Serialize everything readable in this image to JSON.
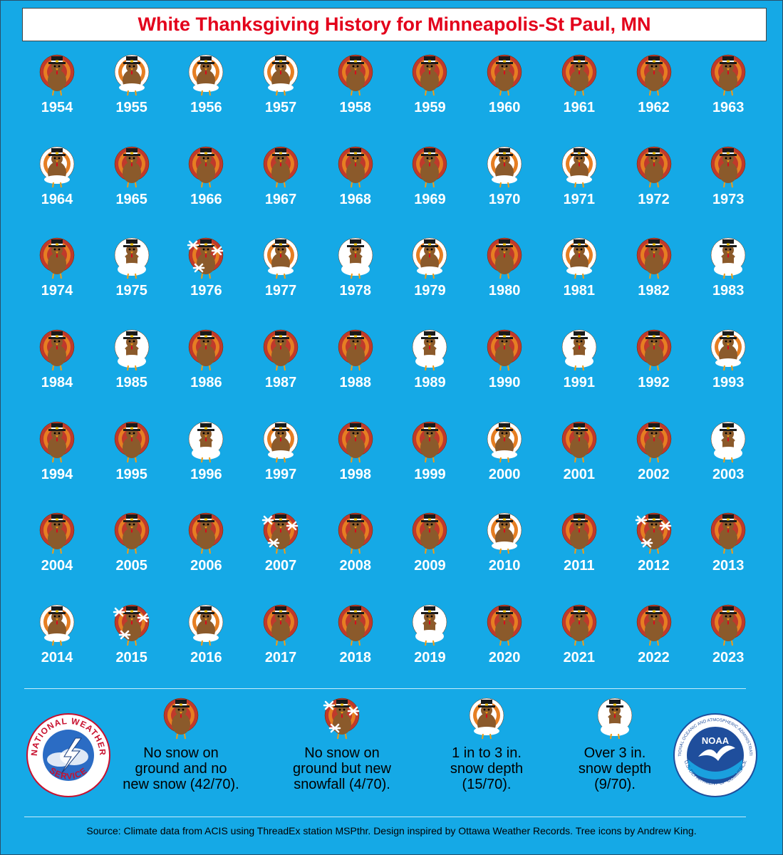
{
  "title": "White Thanksgiving History for Minneapolis-St Paul, MN",
  "categories": {
    "none": {
      "label": "No snow on\nground and no\nnew snow (42/70)."
    },
    "snowfall": {
      "label": "No snow on\nground but new\nsnowfall (4/70)."
    },
    "light": {
      "label": "1 in to 3 in.\nsnow depth\n(15/70)."
    },
    "heavy": {
      "label": "Over 3 in.\nsnow depth\n(9/70)."
    }
  },
  "colors": {
    "background": "#15a9e6",
    "title": "#e3001b",
    "turkey_body": "#8b5a2b",
    "feather_1": "#c0392b",
    "feather_2": "#e67e22",
    "snow": "#ffffff"
  },
  "years": [
    {
      "year": "1954",
      "category": "none"
    },
    {
      "year": "1955",
      "category": "light"
    },
    {
      "year": "1956",
      "category": "light"
    },
    {
      "year": "1957",
      "category": "light"
    },
    {
      "year": "1958",
      "category": "none"
    },
    {
      "year": "1959",
      "category": "none"
    },
    {
      "year": "1960",
      "category": "none"
    },
    {
      "year": "1961",
      "category": "none"
    },
    {
      "year": "1962",
      "category": "none"
    },
    {
      "year": "1963",
      "category": "none"
    },
    {
      "year": "1964",
      "category": "light"
    },
    {
      "year": "1965",
      "category": "none"
    },
    {
      "year": "1966",
      "category": "none"
    },
    {
      "year": "1967",
      "category": "none"
    },
    {
      "year": "1968",
      "category": "none"
    },
    {
      "year": "1969",
      "category": "none"
    },
    {
      "year": "1970",
      "category": "light"
    },
    {
      "year": "1971",
      "category": "light"
    },
    {
      "year": "1972",
      "category": "none"
    },
    {
      "year": "1973",
      "category": "none"
    },
    {
      "year": "1974",
      "category": "none"
    },
    {
      "year": "1975",
      "category": "heavy"
    },
    {
      "year": "1976",
      "category": "snowfall"
    },
    {
      "year": "1977",
      "category": "light"
    },
    {
      "year": "1978",
      "category": "heavy"
    },
    {
      "year": "1979",
      "category": "light"
    },
    {
      "year": "1980",
      "category": "none"
    },
    {
      "year": "1981",
      "category": "light"
    },
    {
      "year": "1982",
      "category": "none"
    },
    {
      "year": "1983",
      "category": "heavy"
    },
    {
      "year": "1984",
      "category": "none"
    },
    {
      "year": "1985",
      "category": "heavy"
    },
    {
      "year": "1986",
      "category": "none"
    },
    {
      "year": "1987",
      "category": "none"
    },
    {
      "year": "1988",
      "category": "none"
    },
    {
      "year": "1989",
      "category": "heavy"
    },
    {
      "year": "1990",
      "category": "none"
    },
    {
      "year": "1991",
      "category": "heavy"
    },
    {
      "year": "1992",
      "category": "none"
    },
    {
      "year": "1993",
      "category": "light"
    },
    {
      "year": "1994",
      "category": "none"
    },
    {
      "year": "1995",
      "category": "none"
    },
    {
      "year": "1996",
      "category": "heavy"
    },
    {
      "year": "1997",
      "category": "light"
    },
    {
      "year": "1998",
      "category": "none"
    },
    {
      "year": "1999",
      "category": "none"
    },
    {
      "year": "2000",
      "category": "light"
    },
    {
      "year": "2001",
      "category": "none"
    },
    {
      "year": "2002",
      "category": "none"
    },
    {
      "year": "2003",
      "category": "heavy"
    },
    {
      "year": "2004",
      "category": "none"
    },
    {
      "year": "2005",
      "category": "none"
    },
    {
      "year": "2006",
      "category": "none"
    },
    {
      "year": "2007",
      "category": "snowfall"
    },
    {
      "year": "2008",
      "category": "none"
    },
    {
      "year": "2009",
      "category": "none"
    },
    {
      "year": "2010",
      "category": "light"
    },
    {
      "year": "2011",
      "category": "none"
    },
    {
      "year": "2012",
      "category": "snowfall"
    },
    {
      "year": "2013",
      "category": "none"
    },
    {
      "year": "2014",
      "category": "light"
    },
    {
      "year": "2015",
      "category": "snowfall"
    },
    {
      "year": "2016",
      "category": "light"
    },
    {
      "year": "2017",
      "category": "none"
    },
    {
      "year": "2018",
      "category": "none"
    },
    {
      "year": "2019",
      "category": "heavy"
    },
    {
      "year": "2020",
      "category": "none"
    },
    {
      "year": "2021",
      "category": "none"
    },
    {
      "year": "2022",
      "category": "none"
    },
    {
      "year": "2023",
      "category": "none"
    }
  ],
  "logos": {
    "nws_top": "NATIONAL WEATHER",
    "nws_bottom": "SERVICE",
    "noaa_center": "NOAA",
    "noaa_ring_top": "NATIONAL OCEANIC AND ATMOSPHERIC ADMINISTRATION",
    "noaa_ring_bottom": "U.S. DEPARTMENT OF COMMERCE"
  },
  "source": "Source: Climate data from ACIS using ThreadEx station MSPthr. Design inspired by Ottawa Weather Records. Tree icons by Andrew King."
}
